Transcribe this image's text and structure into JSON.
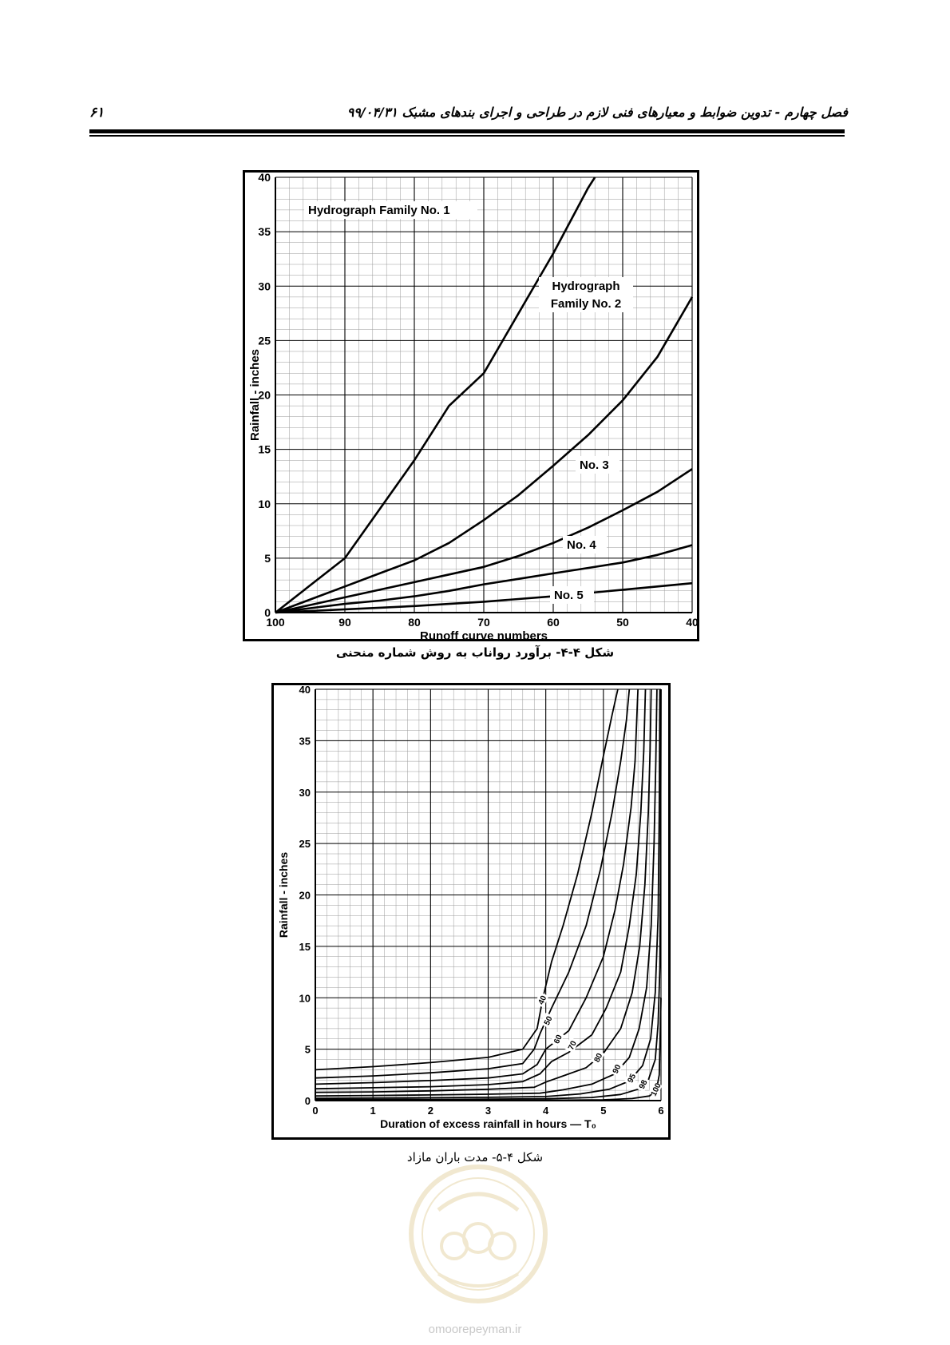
{
  "header": {
    "title": "فصل چهارم - تدوین ضوابط و معیارهای فنی لازم در طراحی و اجرای بندهای مشبک ۹۹/۰۴/۳۱",
    "page_number": "۶۱"
  },
  "figures": [
    {
      "caption": "شکل ۴-۴- برآورد رواناب به روش شماره منحنی"
    },
    {
      "caption": "شکل ۴-۵- مدت باران مازاد"
    }
  ],
  "watermark": {
    "url": "omoorepeyman.ir"
  },
  "chart_data": [
    {
      "type": "line",
      "title": "",
      "xlabel": "Runoff curve numbers",
      "ylabel": "Rainfall - inches",
      "xlim": [
        100,
        40
      ],
      "ylim": [
        0,
        40
      ],
      "x_ticks": [
        "100",
        "90",
        "80",
        "70",
        "60",
        "50",
        "40"
      ],
      "y_ticks": [
        "0",
        "5",
        "10",
        "15",
        "20",
        "25",
        "30",
        "35",
        "40"
      ],
      "grid": true,
      "series": [
        {
          "name": "Hydrograph Family No. 1",
          "label_lines": [
            "Hydrograph Family No. 1"
          ],
          "color": "#000000",
          "points": [
            [
              100,
              0
            ],
            [
              95,
              2.5
            ],
            [
              90,
              5
            ],
            [
              85,
              9.5
            ],
            [
              80,
              14
            ],
            [
              75,
              19
            ],
            [
              70,
              22
            ],
            [
              65,
              27.5
            ],
            [
              60,
              33
            ],
            [
              55,
              39
            ],
            [
              54,
              40
            ]
          ]
        },
        {
          "name": "Hydrograph Family No. 2",
          "label_lines": [
            "Hydrograph",
            "Family No. 2"
          ],
          "color": "#000000",
          "points": [
            [
              100,
              0
            ],
            [
              95,
              1.2
            ],
            [
              90,
              2.4
            ],
            [
              85,
              3.6
            ],
            [
              80,
              4.8
            ],
            [
              75,
              6.4
            ],
            [
              70,
              8.5
            ],
            [
              65,
              10.8
            ],
            [
              60,
              13.5
            ],
            [
              55,
              16.3
            ],
            [
              50,
              19.5
            ],
            [
              45,
              23.5
            ],
            [
              40,
              29
            ]
          ]
        },
        {
          "name": "No. 3",
          "label_lines": [
            "No. 3"
          ],
          "color": "#000000",
          "points": [
            [
              100,
              0
            ],
            [
              95,
              0.7
            ],
            [
              90,
              1.4
            ],
            [
              85,
              2.1
            ],
            [
              80,
              2.8
            ],
            [
              75,
              3.5
            ],
            [
              70,
              4.2
            ],
            [
              65,
              5.2
            ],
            [
              60,
              6.4
            ],
            [
              55,
              7.8
            ],
            [
              50,
              9.4
            ],
            [
              45,
              11.1
            ],
            [
              40,
              13.2
            ]
          ]
        },
        {
          "name": "No. 4",
          "label_lines": [
            "No. 4"
          ],
          "color": "#000000",
          "points": [
            [
              100,
              0
            ],
            [
              95,
              0.4
            ],
            [
              90,
              0.8
            ],
            [
              85,
              1.1
            ],
            [
              80,
              1.5
            ],
            [
              75,
              2
            ],
            [
              70,
              2.6
            ],
            [
              65,
              3.1
            ],
            [
              60,
              3.6
            ],
            [
              55,
              4.1
            ],
            [
              50,
              4.6
            ],
            [
              45,
              5.3
            ],
            [
              40,
              6.2
            ]
          ]
        },
        {
          "name": "No. 5",
          "label_lines": [
            "No. 5"
          ],
          "color": "#000000",
          "points": [
            [
              100,
              0
            ],
            [
              95,
              0.15
            ],
            [
              90,
              0.3
            ],
            [
              85,
              0.45
            ],
            [
              80,
              0.6
            ],
            [
              75,
              0.8
            ],
            [
              70,
              1
            ],
            [
              65,
              1.25
            ],
            [
              60,
              1.5
            ],
            [
              55,
              1.8
            ],
            [
              50,
              2.1
            ],
            [
              45,
              2.4
            ],
            [
              40,
              2.7
            ]
          ]
        }
      ]
    },
    {
      "type": "line",
      "title": "",
      "xlabel": "Duration of excess rainfall in hours — T₀",
      "ylabel": "Rainfall - inches",
      "xlim": [
        0,
        6
      ],
      "ylim": [
        0,
        40
      ],
      "x_ticks": [
        "0",
        "1",
        "2",
        "3",
        "4",
        "5",
        "6"
      ],
      "y_ticks": [
        "0",
        "5",
        "10",
        "15",
        "20",
        "25",
        "30",
        "35",
        "40"
      ],
      "grid": true,
      "series": [
        {
          "name": "40",
          "color": "#000000",
          "points": [
            [
              0,
              3
            ],
            [
              1,
              3.3
            ],
            [
              2,
              3.7
            ],
            [
              3,
              4.2
            ],
            [
              3.6,
              5
            ],
            [
              3.85,
              7
            ],
            [
              3.95,
              10
            ],
            [
              4.1,
              13.5
            ],
            [
              4.3,
              17
            ],
            [
              4.55,
              22
            ],
            [
              4.8,
              28
            ],
            [
              5,
              33.5
            ],
            [
              5.15,
              37.5
            ],
            [
              5.25,
              40
            ]
          ]
        },
        {
          "name": "50",
          "color": "#000000",
          "points": [
            [
              0,
              2.2
            ],
            [
              1,
              2.4
            ],
            [
              2,
              2.7
            ],
            [
              3,
              3.1
            ],
            [
              3.6,
              3.6
            ],
            [
              3.8,
              5
            ],
            [
              3.9,
              6.5
            ],
            [
              4.1,
              9
            ],
            [
              4.4,
              12.5
            ],
            [
              4.7,
              17
            ],
            [
              4.95,
              22.5
            ],
            [
              5.15,
              28
            ],
            [
              5.3,
              33
            ],
            [
              5.4,
              37
            ],
            [
              5.45,
              40
            ]
          ]
        },
        {
          "name": "60",
          "color": "#000000",
          "points": [
            [
              0,
              1.6
            ],
            [
              1,
              1.75
            ],
            [
              2,
              1.95
            ],
            [
              3,
              2.2
            ],
            [
              3.6,
              2.6
            ],
            [
              3.85,
              3.5
            ],
            [
              4,
              5
            ],
            [
              4.4,
              6.8
            ],
            [
              4.7,
              10
            ],
            [
              5,
              14
            ],
            [
              5.2,
              18.5
            ],
            [
              5.35,
              23
            ],
            [
              5.48,
              28.5
            ],
            [
              5.55,
              33
            ],
            [
              5.6,
              40
            ]
          ]
        },
        {
          "name": "70",
          "color": "#000000",
          "points": [
            [
              0,
              1.15
            ],
            [
              1,
              1.25
            ],
            [
              2,
              1.35
            ],
            [
              3,
              1.55
            ],
            [
              3.6,
              1.85
            ],
            [
              3.9,
              2.6
            ],
            [
              4.1,
              3.8
            ],
            [
              4.4,
              4.7
            ],
            [
              4.8,
              6.4
            ],
            [
              5.05,
              9
            ],
            [
              5.3,
              12.5
            ],
            [
              5.45,
              17
            ],
            [
              5.57,
              22
            ],
            [
              5.65,
              28
            ],
            [
              5.7,
              34
            ],
            [
              5.73,
              40
            ]
          ]
        },
        {
          "name": "80",
          "color": "#000000",
          "points": [
            [
              0,
              0.8
            ],
            [
              1,
              0.85
            ],
            [
              2,
              0.95
            ],
            [
              3,
              1.1
            ],
            [
              3.8,
              1.3
            ],
            [
              4,
              1.8
            ],
            [
              4.3,
              2.4
            ],
            [
              4.7,
              3.2
            ],
            [
              5,
              4.6
            ],
            [
              5.3,
              7
            ],
            [
              5.5,
              10.5
            ],
            [
              5.63,
              15
            ],
            [
              5.72,
              21
            ],
            [
              5.78,
              28
            ],
            [
              5.81,
              34
            ],
            [
              5.83,
              40
            ]
          ]
        },
        {
          "name": "90",
          "color": "#000000",
          "points": [
            [
              0,
              0.45
            ],
            [
              1,
              0.5
            ],
            [
              2,
              0.55
            ],
            [
              3,
              0.62
            ],
            [
              3.9,
              0.72
            ],
            [
              4.3,
              1.05
            ],
            [
              4.8,
              1.6
            ],
            [
              5.2,
              2.6
            ],
            [
              5.45,
              4.2
            ],
            [
              5.62,
              7
            ],
            [
              5.75,
              11
            ],
            [
              5.83,
              17
            ],
            [
              5.88,
              25
            ],
            [
              5.91,
              33
            ],
            [
              5.93,
              40
            ]
          ]
        },
        {
          "name": "95",
          "color": "#000000",
          "points": [
            [
              0,
              0.22
            ],
            [
              1,
              0.25
            ],
            [
              2,
              0.28
            ],
            [
              3,
              0.32
            ],
            [
              4,
              0.4
            ],
            [
              4.6,
              0.65
            ],
            [
              5.1,
              1.1
            ],
            [
              5.45,
              1.9
            ],
            [
              5.68,
              3.4
            ],
            [
              5.82,
              6
            ],
            [
              5.9,
              10.5
            ],
            [
              5.95,
              18
            ],
            [
              5.97,
              28
            ],
            [
              5.98,
              40
            ]
          ]
        },
        {
          "name": "98",
          "color": "#000000",
          "points": [
            [
              0,
              0.1
            ],
            [
              1,
              0.11
            ],
            [
              2,
              0.12
            ],
            [
              3,
              0.14
            ],
            [
              4,
              0.18
            ],
            [
              4.8,
              0.3
            ],
            [
              5.3,
              0.6
            ],
            [
              5.6,
              1.1
            ],
            [
              5.78,
              2
            ],
            [
              5.9,
              4
            ],
            [
              5.95,
              7.5
            ],
            [
              5.98,
              13
            ],
            [
              5.99,
              22
            ],
            [
              6,
              40
            ]
          ]
        },
        {
          "name": "100",
          "color": "#000000",
          "points": [
            [
              0,
              0.01
            ],
            [
              2,
              0.02
            ],
            [
              4,
              0.04
            ],
            [
              5,
              0.08
            ],
            [
              5.5,
              0.2
            ],
            [
              5.8,
              0.45
            ],
            [
              5.92,
              1
            ],
            [
              5.97,
              2.5
            ],
            [
              6,
              10
            ]
          ]
        }
      ]
    }
  ]
}
